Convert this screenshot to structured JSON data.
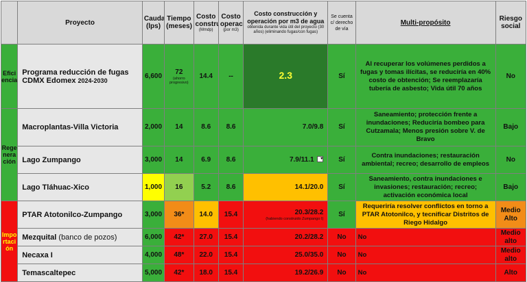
{
  "headers": {
    "blank": "",
    "proyecto": "Proyecto",
    "caudal": "Caudal (lps)",
    "tiempo": "Tiempo (meses)",
    "costo_construccion": "Costo construcción",
    "costo_construccion_unit": "(Mmdp)",
    "costo_operacion": "Costo operación",
    "costo_operacion_unit": "(por m3)",
    "costo_total": "Costo construcción y operación por m3 de agua",
    "costo_total_sub": "obtenida durante vida útil del proyecto (30 años) (eliminando fugas/con fugas)",
    "derecho_via": "Se cuenta c/ derecho de vía",
    "multi": "Multi-propósito",
    "riesgo": "Riesgo social"
  },
  "categories": {
    "eficiencia": "Eficiencia",
    "regeneracion": "Regeneración",
    "importacion": "Importación"
  },
  "rows": [
    {
      "proyecto": "Programa reducción de fugas CDMX Edomex",
      "proyecto_years": "2024-2030",
      "caudal": "6,600",
      "tiempo": "72",
      "tiempo_note": "(ahorro progresivo)",
      "costo_construccion": "14.4",
      "costo_operacion": "--",
      "costo_total": "2.3",
      "derecho_via": "Sí",
      "multi": "Al recuperar los volúmenes perdidos a fugas y tomas ilícitas, se reduciría en 40% costo de obtención; Se reemplazaría tubería de asbesto; Vida útil 70 años",
      "riesgo": "No"
    },
    {
      "proyecto": "Macroplantas-Villa Victoria",
      "caudal": "2,000",
      "tiempo": "14",
      "costo_construccion": "8.6",
      "costo_operacion": "8.6",
      "costo_total": "7.0/9.8",
      "derecho_via": "Sí",
      "multi": "Saneamiento; protección frente a inundaciones; Reduciría bombeo para Cutzamala; Menos presión sobre V. de Bravo",
      "riesgo": "Bajo"
    },
    {
      "proyecto": "Lago Zumpango",
      "caudal": "3,000",
      "tiempo": "14",
      "costo_construccion": "6.9",
      "costo_operacion": "8.6",
      "costo_total": "7.9/11.1",
      "dropdown": "▾",
      "derecho_via": "Sí",
      "multi": "Contra inundaciones; restauración ambiental; recreo; desarrollo de empleos",
      "riesgo": "No"
    },
    {
      "proyecto": "Lago Tláhuac-Xico",
      "caudal": "1,000",
      "tiempo": "16",
      "costo_construccion": "5.2",
      "costo_operacion": "8.6",
      "costo_total": "14.1/20.0",
      "derecho_via": "Sí",
      "multi": "Saneamiento, contra inundaciones e invasiones; restauración; recreo; activación económica local",
      "riesgo": "Bajo"
    },
    {
      "proyecto": "PTAR Atotonilco-Zumpango",
      "caudal": "3,000",
      "tiempo": "36*",
      "costo_construccion": "14.0",
      "costo_operacion": "15.4",
      "costo_total": "20.3/28.2",
      "costo_total_note": "(habiendo construido Zumpango I)",
      "derecho_via": "Sí",
      "multi": "Requeriría resolver conflictos en torno a PTAR Atotonilco, y tecnificar Distritos de Riego Hidalgo",
      "riesgo": "Medio Alto"
    },
    {
      "proyecto": "Mezquital",
      "proyecto_note": "(banco de pozos)",
      "caudal": "6,000",
      "tiempo": "42*",
      "costo_construccion": "27.0",
      "costo_operacion": "15.4",
      "costo_total": "20.2/28.2",
      "derecho_via": "No",
      "multi": "No",
      "riesgo": "Medio alto"
    },
    {
      "proyecto": "Necaxa I",
      "caudal": "4,000",
      "tiempo": "48*",
      "costo_construccion": "22.0",
      "costo_operacion": "15.4",
      "costo_total": "25.0/35.0",
      "derecho_via": "No",
      "multi": "No",
      "riesgo": "Medio alto"
    },
    {
      "proyecto": "Temascaltepec",
      "caudal": "5,000",
      "tiempo": "42*",
      "costo_construccion": "18.0",
      "costo_operacion": "15.4",
      "costo_total": "19.2/26.9",
      "derecho_via": "No",
      "multi": "No",
      "riesgo": "Alto"
    }
  ]
}
